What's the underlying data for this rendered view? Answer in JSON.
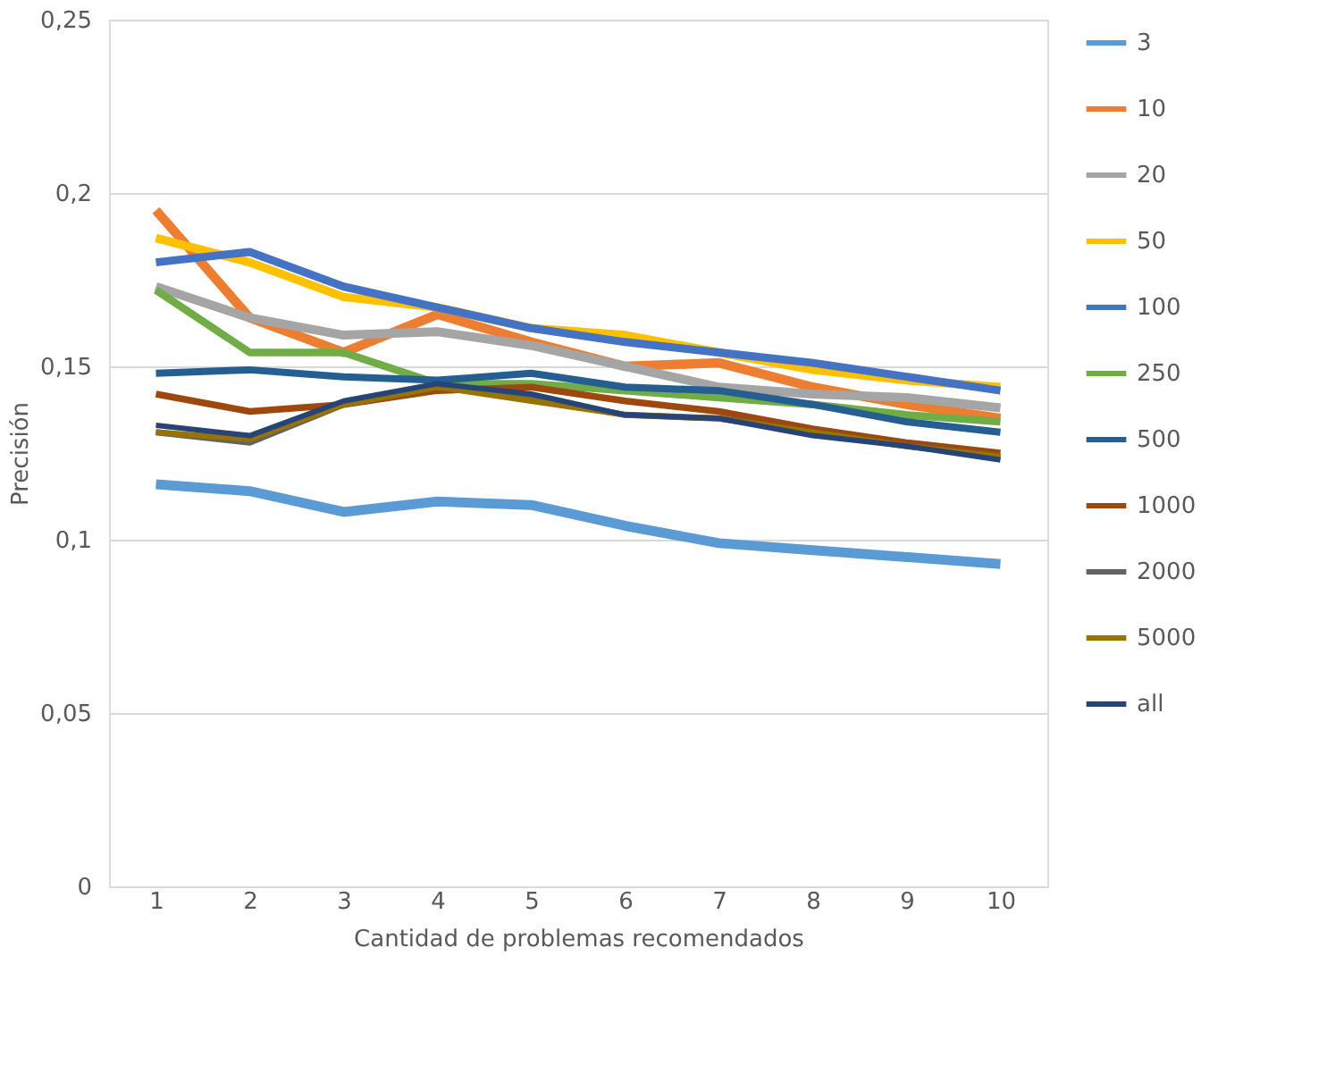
{
  "chart_data": {
    "type": "line",
    "xlabel": "Cantidad de problemas recomendados",
    "ylabel": "Precisión",
    "categories": [
      "1",
      "2",
      "3",
      "4",
      "5",
      "6",
      "7",
      "8",
      "9",
      "10"
    ],
    "ylim": [
      0,
      0.25
    ],
    "yticks": [
      0,
      {
        "value": 0.05,
        "label": "0,05"
      },
      {
        "value": 0.1,
        "label": "0,1"
      },
      {
        "value": 0.15,
        "label": "0,15"
      },
      {
        "value": 0.2,
        "label": "0,2"
      },
      {
        "value": 0.25,
        "label": "0,25"
      }
    ],
    "grid": "y",
    "legend": "right",
    "marker": "none",
    "line_style": "solid",
    "series": [
      {
        "name": "3",
        "color": "#5b9bd5",
        "values": [
          0.116,
          0.114,
          0.108,
          0.111,
          0.11,
          0.104,
          0.099,
          0.097,
          0.095,
          0.093
        ]
      },
      {
        "name": "10",
        "color": "#ed7d31",
        "values": [
          0.195,
          0.164,
          0.154,
          0.165,
          0.157,
          0.15,
          0.151,
          0.144,
          0.139,
          0.135
        ]
      },
      {
        "name": "20",
        "color": "#a5a5a5",
        "values": [
          0.173,
          0.164,
          0.159,
          0.16,
          0.156,
          0.15,
          0.144,
          0.142,
          0.141,
          0.138
        ]
      },
      {
        "name": "50",
        "color": "#ffc000",
        "values": [
          0.187,
          0.18,
          0.17,
          0.167,
          0.161,
          0.159,
          0.154,
          0.149,
          0.146,
          0.144
        ]
      },
      {
        "name": "100",
        "color": "#4472c4",
        "values": [
          0.18,
          0.183,
          0.173,
          0.167,
          0.161,
          0.157,
          0.154,
          0.151,
          0.147,
          0.143
        ]
      },
      {
        "name": "250",
        "color": "#70ad47",
        "values": [
          0.172,
          0.154,
          0.154,
          0.145,
          0.145,
          0.143,
          0.141,
          0.139,
          0.136,
          0.134
        ]
      },
      {
        "name": "500",
        "color": "#255e91",
        "values": [
          0.148,
          0.149,
          0.147,
          0.146,
          0.148,
          0.144,
          0.143,
          0.139,
          0.134,
          0.131
        ]
      },
      {
        "name": "1000",
        "color": "#9e480e",
        "values": [
          0.142,
          0.137,
          0.139,
          0.143,
          0.144,
          0.14,
          0.137,
          0.132,
          0.128,
          0.125
        ]
      },
      {
        "name": "2000",
        "color": "#636363",
        "values": [
          0.131,
          0.128,
          0.139,
          0.144,
          0.141,
          0.136,
          0.135,
          0.131,
          0.127,
          0.124
        ]
      },
      {
        "name": "5000",
        "color": "#997300",
        "values": [
          0.131,
          0.129,
          0.139,
          0.144,
          0.14,
          0.136,
          0.135,
          0.131,
          0.127,
          0.124
        ]
      },
      {
        "name": "all",
        "color": "#264478",
        "values": [
          0.133,
          0.13,
          0.14,
          0.145,
          0.142,
          0.136,
          0.135,
          0.13,
          0.127,
          0.123
        ]
      }
    ]
  }
}
